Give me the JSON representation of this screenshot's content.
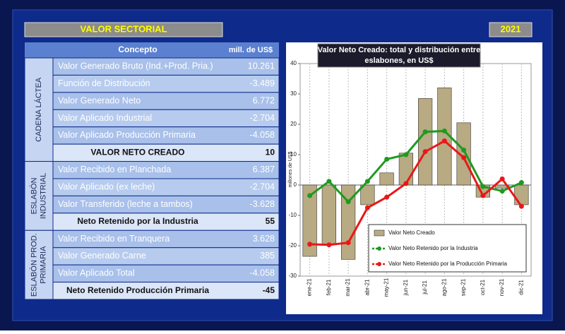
{
  "header": {
    "title": "VALOR SECTORIAL",
    "year": "2021"
  },
  "table": {
    "columns": [
      "Concepto",
      "mill. de US$"
    ],
    "groups": [
      {
        "label": [
          "CADENA LÁCTEA"
        ],
        "rows": [
          [
            "Valor Generado Bruto (Ind.+Prod. Pria.)",
            "10.261"
          ],
          [
            "Función de Distribución",
            "-3.489"
          ],
          [
            "Valor Generado Neto",
            "6.772"
          ],
          [
            "Valor Aplicado Industrial",
            "-2.704"
          ],
          [
            "Valor Aplicado Producción Primaria",
            "-4.058"
          ]
        ],
        "total": [
          "VALOR  NETO  CREADO",
          "10"
        ]
      },
      {
        "label": [
          "ESLABÓN",
          "INDUSTRIAL"
        ],
        "rows": [
          [
            "Valor Recibido en Planchada",
            "6.387"
          ],
          [
            "Valor Aplicado (ex leche)",
            "-2.704"
          ],
          [
            "Valor Transferido (leche a tambos)",
            "-3.628"
          ]
        ],
        "total": [
          "Neto Retenido por la Industria",
          "55"
        ]
      },
      {
        "label": [
          "ESLABÓN PROD.",
          "PRIMARIA"
        ],
        "rows": [
          [
            "Valor Recibido en Tranquera",
            "3.628"
          ],
          [
            "Valor Generado Carne",
            "385"
          ],
          [
            "Valor Aplicado Total",
            "-4.058"
          ]
        ],
        "total": [
          "Neto Retenido Producción Primaria",
          "-45"
        ]
      }
    ]
  },
  "chart_data": {
    "type": "bar",
    "title": [
      "Valor Neto Creado: total y distribución entre",
      "eslabones, en US$"
    ],
    "y_label": "millones de US$",
    "categories": [
      "ene-21",
      "feb-21",
      "mar-21",
      "abr-21",
      "may-21",
      "jun-21",
      "jul-21",
      "ago-21",
      "sep-21",
      "oct-21",
      "nov-21",
      "dic-21"
    ],
    "series": [
      {
        "name": "Valor Neto Creado",
        "type": "bar",
        "color": "#b8aa82",
        "values": [
          -23.5,
          -19.5,
          -24.5,
          -6.5,
          4,
          10.5,
          28.5,
          32,
          20.5,
          -4,
          -1,
          -6.5
        ]
      },
      {
        "name": "Valor Neto Retenido por la Industria",
        "type": "line",
        "color": "#1f9a1f",
        "values": [
          -3.5,
          1.2,
          -5.5,
          1.2,
          8.5,
          10,
          17.5,
          17.8,
          11.5,
          -0.5,
          -2,
          0.8
        ]
      },
      {
        "name": "Valor Neto Retenido por la Producción Primaria",
        "type": "line",
        "color": "#e81818",
        "values": [
          -19.5,
          -19.7,
          -19,
          -7.5,
          -4,
          0.5,
          11,
          14.5,
          9,
          -3.5,
          2,
          -7
        ]
      }
    ],
    "ylim": [
      -30,
      40
    ],
    "yticks": [
      -30,
      -20,
      -10,
      0,
      10,
      20,
      30,
      40
    ],
    "grid": true
  }
}
